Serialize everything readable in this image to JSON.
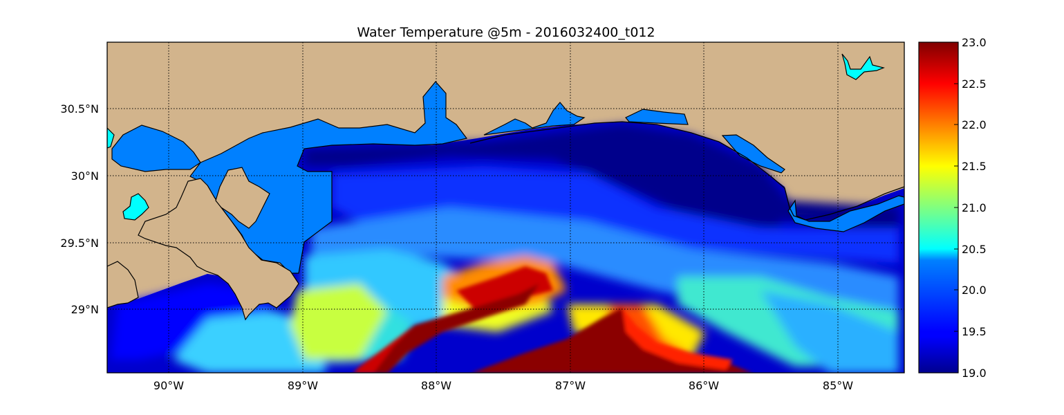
{
  "title": "Water Temperature @5m - 2016032400_t012",
  "map": {
    "x_ticks": [
      "90°W",
      "89°W",
      "88°W",
      "87°W",
      "86°W",
      "85°W"
    ],
    "y_ticks": [
      "30.5°N",
      "30°N",
      "29.5°N",
      "29°N"
    ],
    "lon_range": [
      -90.47,
      -84.5
    ],
    "lat_range": [
      28.53,
      31.0
    ],
    "land_color": "#d2b48c",
    "no_data_water_color": "#0080ff",
    "lake_color": "#00ffff",
    "grid": "dotted"
  },
  "colorbar": {
    "colormap": "jet",
    "min": 19.0,
    "max": 23.0,
    "tick_labels": [
      "23.0",
      "22.5",
      "22.0",
      "21.5",
      "21.0",
      "20.5",
      "20.0",
      "19.5",
      "19.0"
    ]
  }
}
